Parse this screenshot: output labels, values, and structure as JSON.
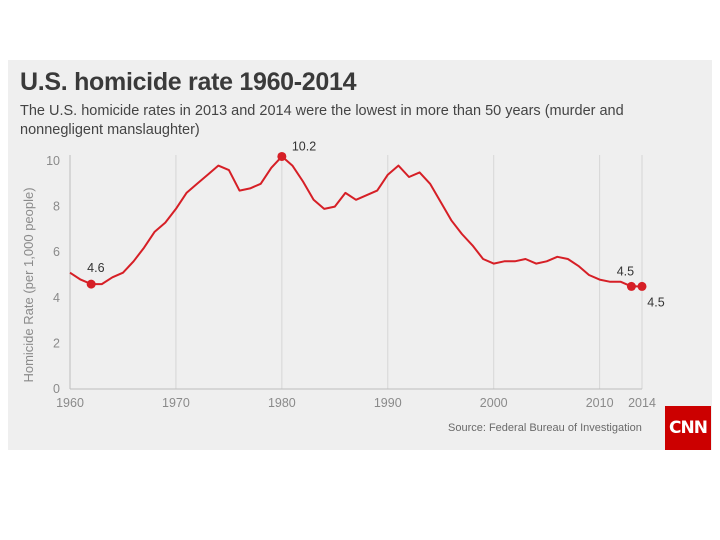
{
  "chart_data": {
    "type": "line",
    "title": "U.S. homicide rate 1960-2014",
    "subtitle": "The U.S. homicide rates in 2013 and 2014 were the lowest in more than 50 years (murder and nonnegligent manslaughter)",
    "ylabel": "Homicide Rate (per 1,000 people)",
    "xlabel": "",
    "xlim": [
      1960,
      2014
    ],
    "ylim": [
      0,
      10
    ],
    "x_ticks": [
      1960,
      1970,
      1980,
      1990,
      2000,
      2010,
      2014
    ],
    "y_ticks": [
      0,
      2,
      4,
      6,
      8,
      10
    ],
    "grid": "vertical",
    "series": [
      {
        "name": "Homicide rate",
        "color": "#d61f26",
        "x": [
          1960,
          1961,
          1962,
          1963,
          1964,
          1965,
          1966,
          1967,
          1968,
          1969,
          1970,
          1971,
          1972,
          1973,
          1974,
          1975,
          1976,
          1977,
          1978,
          1979,
          1980,
          1981,
          1982,
          1983,
          1984,
          1985,
          1986,
          1987,
          1988,
          1989,
          1990,
          1991,
          1992,
          1993,
          1994,
          1995,
          1996,
          1997,
          1998,
          1999,
          2000,
          2001,
          2002,
          2003,
          2004,
          2005,
          2006,
          2007,
          2008,
          2009,
          2010,
          2011,
          2012,
          2013,
          2014
        ],
        "values": [
          5.1,
          4.8,
          4.6,
          4.6,
          4.9,
          5.1,
          5.6,
          6.2,
          6.9,
          7.3,
          7.9,
          8.6,
          9.0,
          9.4,
          9.8,
          9.6,
          8.7,
          8.8,
          9.0,
          9.7,
          10.2,
          9.8,
          9.1,
          8.3,
          7.9,
          8.0,
          8.6,
          8.3,
          8.5,
          8.7,
          9.4,
          9.8,
          9.3,
          9.5,
          9.0,
          8.2,
          7.4,
          6.8,
          6.3,
          5.7,
          5.5,
          5.6,
          5.6,
          5.7,
          5.5,
          5.6,
          5.8,
          5.7,
          5.4,
          5.0,
          4.8,
          4.7,
          4.7,
          4.5,
          4.5
        ]
      }
    ],
    "annotations": [
      {
        "x": 1962,
        "y": 4.6,
        "label": "4.6"
      },
      {
        "x": 1980,
        "y": 10.2,
        "label": "10.2"
      },
      {
        "x": 2013,
        "y": 4.5,
        "label": "4.5"
      },
      {
        "x": 2014,
        "y": 4.5,
        "label": "4.5"
      }
    ],
    "source": "Source: Federal Bureau of Investigation"
  },
  "brand": {
    "logo_text": "CNN",
    "logo_color": "#cc0000"
  }
}
